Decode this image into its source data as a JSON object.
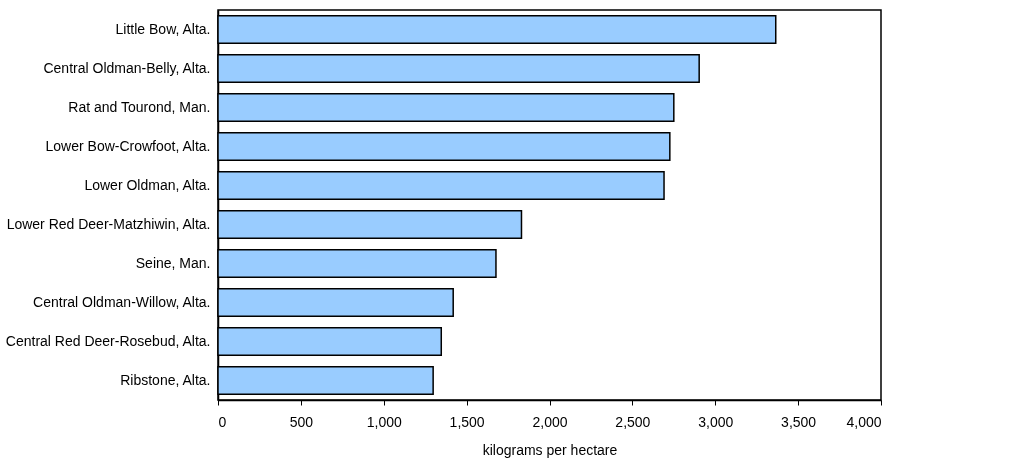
{
  "chart_data": {
    "type": "bar",
    "orientation": "horizontal",
    "xlabel": "kilograms per hectare",
    "categories": [
      "Little Bow, Alta.",
      "Central Oldman-Belly, Alta.",
      "Rat and Tourond, Man.",
      "Lower Bow-Crowfoot, Alta.",
      "Lower Oldman, Alta.",
      "Lower Red Deer-Matzhiwin, Alta.",
      "Seine, Man.",
      "Central Oldman-Willow, Alta.",
      "Central Red Deer-Rosebud, Alta.",
      "Ribstone, Alta."
    ],
    "values": [
      3365,
      2903,
      2750,
      2726,
      2691,
      1831,
      1677,
      1419,
      1347,
      1298
    ],
    "color": "#99ccff",
    "xlim": [
      0,
      4000
    ],
    "xticks": [
      {
        "value": 0,
        "label": "0"
      },
      {
        "value": 500,
        "label": "500"
      },
      {
        "value": 1000,
        "label": "1,000"
      },
      {
        "value": 1500,
        "label": "1,500"
      },
      {
        "value": 2000,
        "label": "2,000"
      },
      {
        "value": 2500,
        "label": "2,500"
      },
      {
        "value": 3000,
        "label": "3,000"
      },
      {
        "value": 3500,
        "label": "3,500"
      },
      {
        "value": 4000,
        "label": "4,000"
      }
    ],
    "grid": false
  }
}
